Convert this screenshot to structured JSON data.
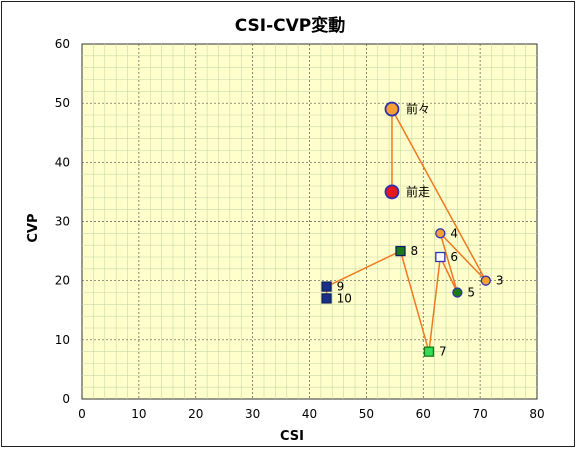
{
  "chart_data": {
    "type": "scatter",
    "title": "CSI-CVP変動",
    "xlabel": "CSI",
    "ylabel": "CVP",
    "xlim": [
      0,
      80
    ],
    "ylim": [
      0,
      60
    ],
    "xticks": [
      "0",
      "10",
      "20",
      "30",
      "40",
      "50",
      "60",
      "70",
      "80"
    ],
    "yticks": [
      "0",
      "10",
      "20",
      "30",
      "40",
      "50",
      "60"
    ],
    "grid": true,
    "colors": {
      "plot_background": "#ffffcc",
      "connector_line": "#f07820",
      "orange_marker": "#f5a030",
      "red_marker": "#e81818",
      "marker_outline_blue": "#3030b0",
      "navy_marker": "#1a2e8c",
      "green_marker": "#1a7a1a",
      "light_green_marker": "#33dd55",
      "white_marker": "#ffffff"
    },
    "points": [
      {
        "label": "前々",
        "x": 54.5,
        "y": 49,
        "marker": "circle",
        "fill": "orange_marker"
      },
      {
        "label": "前走",
        "x": 54.5,
        "y": 35,
        "marker": "circle",
        "fill": "red_marker"
      },
      {
        "label": "3",
        "x": 71,
        "y": 20,
        "marker": "circle",
        "fill": "orange_marker"
      },
      {
        "label": "4",
        "x": 63,
        "y": 28,
        "marker": "circle",
        "fill": "orange_marker"
      },
      {
        "label": "5",
        "x": 66,
        "y": 18,
        "marker": "circle",
        "fill": "green_marker"
      },
      {
        "label": "6",
        "x": 63,
        "y": 24,
        "marker": "square",
        "fill": "white_marker"
      },
      {
        "label": "7",
        "x": 61,
        "y": 8,
        "marker": "square",
        "fill": "light_green_marker"
      },
      {
        "label": "8",
        "x": 56,
        "y": 25,
        "marker": "square",
        "fill": "green_marker"
      },
      {
        "label": "9",
        "x": 43,
        "y": 19,
        "marker": "square",
        "fill": "navy_marker"
      },
      {
        "label": "10",
        "x": 43,
        "y": 17,
        "marker": "square",
        "fill": "navy_marker"
      }
    ],
    "connector_order": [
      "10",
      "9",
      "8",
      "7",
      "6",
      "5",
      "4",
      "3",
      "前々",
      "前走"
    ]
  }
}
